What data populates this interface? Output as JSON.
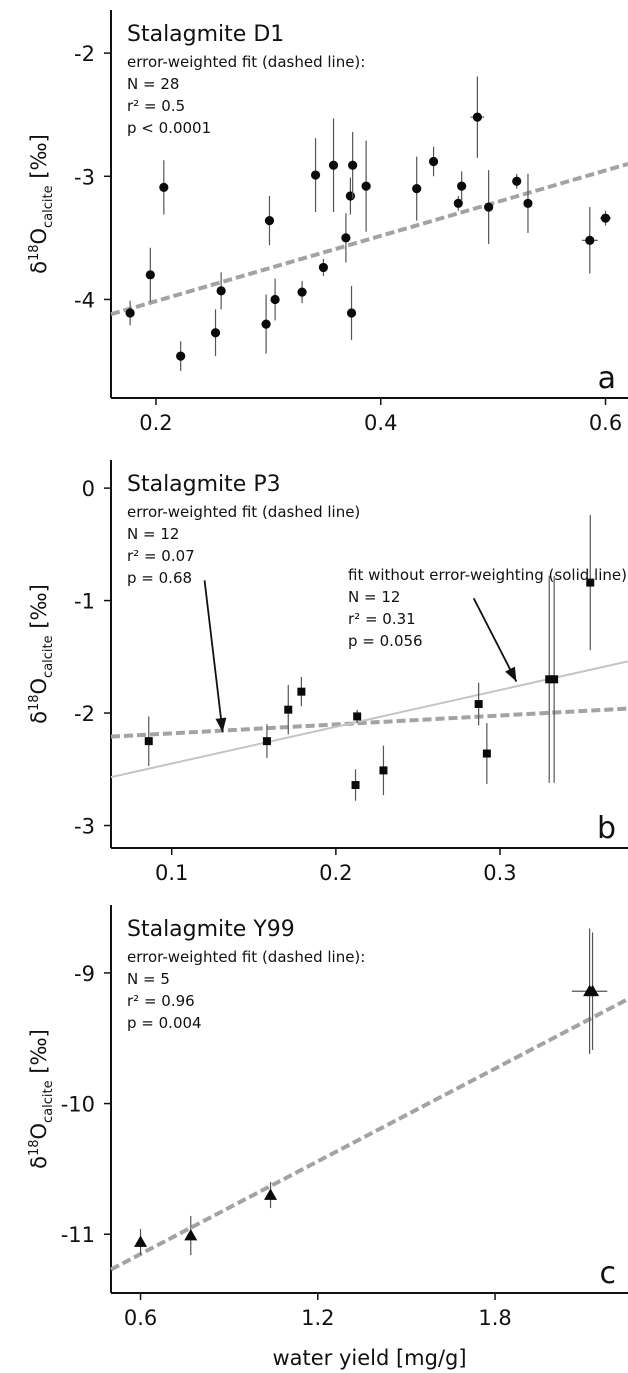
{
  "chart_data": [
    {
      "type": "scatter",
      "panel_letter": "a",
      "title": "Stalagmite D1",
      "annotations": [
        "error-weighted fit (dashed line):",
        "N = 28",
        "r² = 0.5",
        "p < 0.0001"
      ],
      "ylabel": {
        "symbol": "δ",
        "sup": "18",
        "base": "O",
        "sub": "calcite",
        "unit": "[‰]"
      },
      "xlabel": "",
      "xlim": [
        0.16,
        0.62
      ],
      "ylim": [
        -4.8,
        -1.65
      ],
      "xticks": [
        0.2,
        0.4,
        0.6
      ],
      "xtick_labels": [
        "0.2",
        "0.4",
        "0.6"
      ],
      "yticks": [
        -4,
        -3,
        -2
      ],
      "ytick_labels": [
        "-4",
        "-3",
        "-2"
      ],
      "marker": "circle",
      "grid": false,
      "points": [
        {
          "x": 0.177,
          "y": -4.11,
          "yerr": 0.1
        },
        {
          "x": 0.195,
          "y": -3.8,
          "yerr": 0.22
        },
        {
          "x": 0.207,
          "y": -3.09,
          "yerr": 0.22
        },
        {
          "x": 0.222,
          "y": -4.46,
          "yerr": 0.12
        },
        {
          "x": 0.253,
          "y": -4.27,
          "yerr": 0.19
        },
        {
          "x": 0.258,
          "y": -3.93,
          "yerr": 0.15
        },
        {
          "x": 0.298,
          "y": -4.2,
          "yerr": 0.24
        },
        {
          "x": 0.301,
          "y": -3.36,
          "yerr": 0.2
        },
        {
          "x": 0.306,
          "y": -4.0,
          "yerr": 0.17
        },
        {
          "x": 0.33,
          "y": -3.94,
          "yerr": 0.09
        },
        {
          "x": 0.342,
          "y": -2.99,
          "yerr": 0.3
        },
        {
          "x": 0.349,
          "y": -3.74,
          "yerr": 0.07
        },
        {
          "x": 0.358,
          "y": -2.91,
          "yerr": 0.38
        },
        {
          "x": 0.369,
          "y": -3.5,
          "yerr": 0.2
        },
        {
          "x": 0.373,
          "y": -3.16,
          "yerr": 0.15
        },
        {
          "x": 0.374,
          "y": -4.11,
          "yerr": 0.22
        },
        {
          "x": 0.375,
          "y": -2.91,
          "yerr": 0.27
        },
        {
          "x": 0.387,
          "y": -3.08,
          "yerr": 0.37
        },
        {
          "x": 0.432,
          "y": -3.1,
          "yerr": 0.26
        },
        {
          "x": 0.447,
          "y": -2.88,
          "yerr": 0.12
        },
        {
          "x": 0.469,
          "y": -3.22,
          "yerr": 0.06
        },
        {
          "x": 0.472,
          "y": -3.08,
          "yerr": 0.12
        },
        {
          "x": 0.486,
          "y": -2.52,
          "yerr": 0.33,
          "xerr": 0.006
        },
        {
          "x": 0.496,
          "y": -3.25,
          "yerr": 0.3
        },
        {
          "x": 0.521,
          "y": -3.04,
          "yerr": 0.06
        },
        {
          "x": 0.531,
          "y": -3.22,
          "yerr": 0.24
        },
        {
          "x": 0.586,
          "y": -3.52,
          "yerr": 0.27,
          "xerr": 0.007
        },
        {
          "x": 0.6,
          "y": -3.34,
          "yerr": 0.06,
          "xerr": 0.005
        }
      ],
      "fit_lines": [
        {
          "style": "dashed",
          "x": [
            0.16,
            0.62
          ],
          "y": [
            -4.12,
            -2.9
          ]
        }
      ]
    },
    {
      "type": "scatter",
      "panel_letter": "b",
      "title": "Stalagmite P3",
      "annotations": [
        "error-weighted fit (dashed line)",
        "N = 12",
        "r² = 0.07",
        "p = 0.68"
      ],
      "annotations_right": [
        "fit without error-weighting (solid line):",
        "N = 12",
        "r² = 0.31",
        "p = 0.056"
      ],
      "ylabel": {
        "symbol": "δ",
        "sup": "18",
        "base": "O",
        "sub": "calcite",
        "unit": "[‰]"
      },
      "xlabel": "",
      "xlim": [
        0.063,
        0.378
      ],
      "ylim": [
        -3.2,
        0.25
      ],
      "xticks": [
        0.1,
        0.2,
        0.3
      ],
      "xtick_labels": [
        "0.1",
        "0.2",
        "0.3"
      ],
      "yticks": [
        -3,
        -2,
        -1,
        0
      ],
      "ytick_labels": [
        "-3",
        "-2",
        "-1",
        "0"
      ],
      "marker": "square",
      "grid": false,
      "points": [
        {
          "x": 0.086,
          "y": -2.25,
          "yerr": 0.22
        },
        {
          "x": 0.158,
          "y": -2.25,
          "yerr": 0.15
        },
        {
          "x": 0.171,
          "y": -1.97,
          "yerr": 0.22
        },
        {
          "x": 0.179,
          "y": -1.81,
          "yerr": 0.13
        },
        {
          "x": 0.212,
          "y": -2.64,
          "yerr": 0.14
        },
        {
          "x": 0.213,
          "y": -2.03,
          "yerr": 0.06
        },
        {
          "x": 0.229,
          "y": -2.51,
          "yerr": 0.22
        },
        {
          "x": 0.287,
          "y": -1.92,
          "yerr": 0.19
        },
        {
          "x": 0.292,
          "y": -2.36,
          "yerr": 0.27
        },
        {
          "x": 0.33,
          "y": -1.7,
          "yerr": 0.92
        },
        {
          "x": 0.333,
          "y": -1.7,
          "yerr": 0.92
        },
        {
          "x": 0.355,
          "y": -0.84,
          "yerr": 0.6
        }
      ],
      "fit_lines": [
        {
          "style": "dashed",
          "x": [
            0.063,
            0.378
          ],
          "y": [
            -2.21,
            -1.96
          ]
        },
        {
          "style": "solid",
          "x": [
            0.063,
            0.378
          ],
          "y": [
            -2.57,
            -1.54
          ]
        }
      ],
      "arrows": [
        {
          "from": [
            0.12,
            -0.82
          ],
          "to": [
            0.131,
            -2.17
          ]
        },
        {
          "from": [
            0.284,
            -0.98
          ],
          "to": [
            0.31,
            -1.72
          ]
        }
      ]
    },
    {
      "type": "scatter",
      "panel_letter": "c",
      "title": "Stalagmite Y99",
      "annotations": [
        "error-weighted fit (dashed line):",
        "N = 5",
        "r² = 0.96",
        "p = 0.004"
      ],
      "ylabel": {
        "symbol": "δ",
        "sup": "18",
        "base": "O",
        "sub": "calcite",
        "unit": "[‰]"
      },
      "xlabel": "water yield [mg/g]",
      "xlim": [
        0.5,
        2.25
      ],
      "ylim": [
        -11.45,
        -8.48
      ],
      "xticks": [
        0.6,
        1.2,
        1.8
      ],
      "xtick_labels": [
        "0.6",
        "1.2",
        "1.8"
      ],
      "yticks": [
        -11,
        -10,
        -9
      ],
      "ytick_labels": [
        "-11",
        "-10",
        "-9"
      ],
      "marker": "triangle",
      "grid": false,
      "points": [
        {
          "x": 0.6,
          "y": -11.06,
          "yerr": 0.1
        },
        {
          "x": 0.77,
          "y": -11.01,
          "yerr": 0.15
        },
        {
          "x": 1.04,
          "y": -10.7,
          "yerr": 0.1
        },
        {
          "x": 2.12,
          "y": -9.14,
          "yerr": 0.48,
          "xerr": 0.06
        },
        {
          "x": 2.13,
          "y": -9.14,
          "yerr": 0.45
        }
      ],
      "fit_lines": [
        {
          "style": "dashed",
          "x": [
            0.5,
            2.25
          ],
          "y": [
            -11.27,
            -9.2
          ]
        }
      ]
    }
  ]
}
